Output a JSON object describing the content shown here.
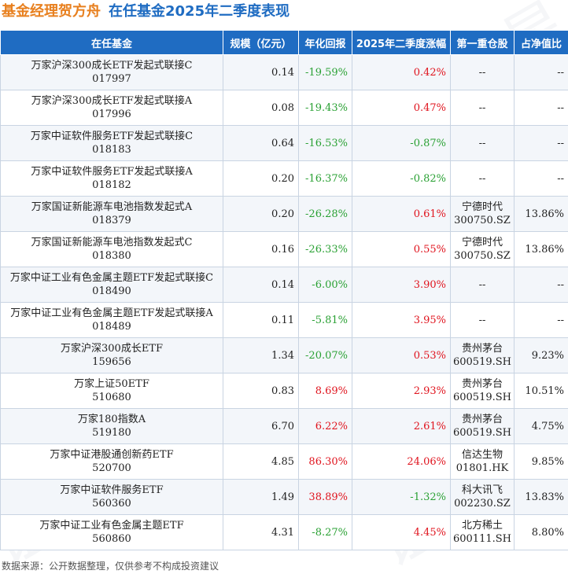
{
  "header": {
    "manager_title": "基金经理贺方舟",
    "subtitle": "在任基金2025年二季度表现"
  },
  "table": {
    "columns": [
      "在任基金",
      "规模（亿元）",
      "年化回报",
      "2025年二季度涨幅",
      "第一重仓股",
      "占净值比"
    ],
    "rows": [
      {
        "name": "万家沪深300成长ETF发起式联接C",
        "code": "017997",
        "scale": "0.14",
        "annual": "-19.59%",
        "q2": "0.42%",
        "stock": "--",
        "stock_code": "",
        "ratio": "--"
      },
      {
        "name": "万家沪深300成长ETF发起式联接A",
        "code": "017996",
        "scale": "0.08",
        "annual": "-19.43%",
        "q2": "0.47%",
        "stock": "--",
        "stock_code": "",
        "ratio": "--"
      },
      {
        "name": "万家中证软件服务ETF发起式联接C",
        "code": "018183",
        "scale": "0.64",
        "annual": "-16.53%",
        "q2": "-0.87%",
        "stock": "--",
        "stock_code": "",
        "ratio": "--"
      },
      {
        "name": "万家中证软件服务ETF发起式联接A",
        "code": "018182",
        "scale": "0.20",
        "annual": "-16.37%",
        "q2": "-0.82%",
        "stock": "--",
        "stock_code": "",
        "ratio": "--"
      },
      {
        "name": "万家国证新能源车电池指数发起式A",
        "code": "018379",
        "scale": "0.20",
        "annual": "-26.28%",
        "q2": "0.61%",
        "stock": "宁德时代",
        "stock_code": "300750.SZ",
        "ratio": "13.86%"
      },
      {
        "name": "万家国证新能源车电池指数发起式C",
        "code": "018380",
        "scale": "0.16",
        "annual": "-26.33%",
        "q2": "0.55%",
        "stock": "宁德时代",
        "stock_code": "300750.SZ",
        "ratio": "13.86%"
      },
      {
        "name": "万家中证工业有色金属主题ETF发起式联接C",
        "code": "018490",
        "scale": "0.14",
        "annual": "-6.00%",
        "q2": "3.90%",
        "stock": "--",
        "stock_code": "",
        "ratio": "--"
      },
      {
        "name": "万家中证工业有色金属主题ETF发起式联接A",
        "code": "018489",
        "scale": "0.11",
        "annual": "-5.81%",
        "q2": "3.95%",
        "stock": "--",
        "stock_code": "",
        "ratio": "--"
      },
      {
        "name": "万家沪深300成长ETF",
        "code": "159656",
        "scale": "1.34",
        "annual": "-20.07%",
        "q2": "0.53%",
        "stock": "贵州茅台",
        "stock_code": "600519.SH",
        "ratio": "9.23%"
      },
      {
        "name": "万家上证50ETF",
        "code": "510680",
        "scale": "0.83",
        "annual": "8.69%",
        "q2": "2.93%",
        "stock": "贵州茅台",
        "stock_code": "600519.SH",
        "ratio": "10.51%"
      },
      {
        "name": "万家180指数A",
        "code": "519180",
        "scale": "6.70",
        "annual": "6.22%",
        "q2": "2.61%",
        "stock": "贵州茅台",
        "stock_code": "600519.SH",
        "ratio": "4.75%"
      },
      {
        "name": "万家中证港股通创新药ETF",
        "code": "520700",
        "scale": "4.85",
        "annual": "86.30%",
        "q2": "24.06%",
        "stock": "信达生物",
        "stock_code": "01801.HK",
        "ratio": "9.85%"
      },
      {
        "name": "万家中证软件服务ETF",
        "code": "560360",
        "scale": "1.49",
        "annual": "38.89%",
        "q2": "-1.32%",
        "stock": "科大讯飞",
        "stock_code": "002230.SZ",
        "ratio": "13.83%"
      },
      {
        "name": "万家中证工业有色金属主题ETF",
        "code": "560860",
        "scale": "4.31",
        "annual": "-8.27%",
        "q2": "4.45%",
        "stock": "北方稀土",
        "stock_code": "600111.SH",
        "ratio": "8.80%"
      }
    ]
  },
  "colors": {
    "header_bg": "#1f6cc2",
    "manager_title": "#e8801f",
    "subtitle": "#1f6cc2",
    "negative": "#2aa134",
    "positive": "#e0141e"
  },
  "watermark": "证券之星",
  "footer": "数据来源：公开数据整理，仅供参考不构成投资建议"
}
